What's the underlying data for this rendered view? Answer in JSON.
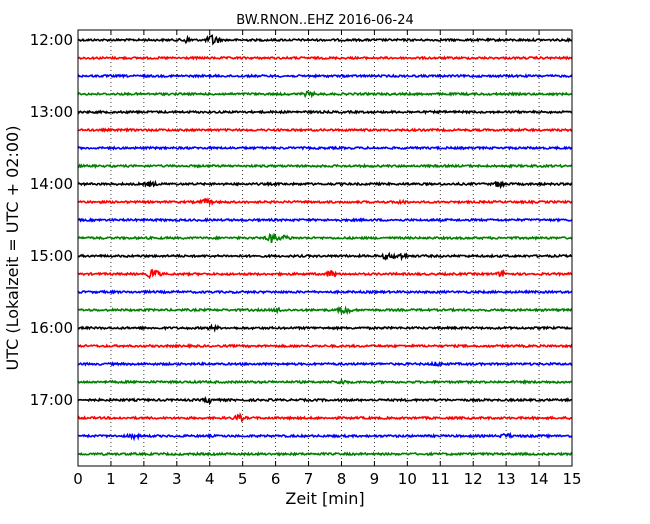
{
  "chart_data": {
    "type": "line",
    "title": "BW.RNON..EHZ 2016-06-24",
    "xlabel": "Zeit  [min]",
    "ylabel": "UTC (Lokalzeit = UTC + 02:00)",
    "xlim": [
      0,
      15
    ],
    "x_ticks": [
      0,
      1,
      2,
      3,
      4,
      5,
      6,
      7,
      8,
      9,
      10,
      11,
      12,
      13,
      14,
      15
    ],
    "x_tick_labels": [
      "0",
      "1",
      "2",
      "3",
      "4",
      "5",
      "6",
      "7",
      "8",
      "9",
      "10",
      "11",
      "12",
      "13",
      "14",
      "15"
    ],
    "y_tick_labels": [
      "12:00",
      "13:00",
      "14:00",
      "15:00",
      "16:00",
      "17:00"
    ],
    "grid": "vertical dotted",
    "trace_colors": [
      "#000000",
      "#ff0000",
      "#0000ff",
      "#008000"
    ],
    "traces": [
      {
        "start": "12:00",
        "events": [
          [
            3.3,
            0.6
          ],
          [
            4.1,
            1.4
          ]
        ]
      },
      {
        "start": "12:15",
        "events": []
      },
      {
        "start": "12:30",
        "events": []
      },
      {
        "start": "12:45",
        "events": [
          [
            7.0,
            0.5
          ]
        ]
      },
      {
        "start": "13:00",
        "events": []
      },
      {
        "start": "13:15",
        "events": []
      },
      {
        "start": "13:30",
        "events": []
      },
      {
        "start": "13:45",
        "events": []
      },
      {
        "start": "14:00",
        "events": [
          [
            2.2,
            0.5
          ],
          [
            12.8,
            0.7
          ]
        ]
      },
      {
        "start": "14:15",
        "events": [
          [
            3.9,
            0.6
          ],
          [
            9.8,
            0.3
          ]
        ]
      },
      {
        "start": "14:30",
        "events": []
      },
      {
        "start": "14:45",
        "events": [
          [
            5.9,
            1.1
          ],
          [
            6.3,
            0.5
          ]
        ]
      },
      {
        "start": "15:00",
        "events": [
          [
            9.4,
            0.7
          ],
          [
            9.8,
            0.6
          ]
        ]
      },
      {
        "start": "15:15",
        "events": [
          [
            2.3,
            1.3
          ],
          [
            7.7,
            0.8
          ],
          [
            12.9,
            0.6
          ]
        ]
      },
      {
        "start": "15:30",
        "events": []
      },
      {
        "start": "15:45",
        "events": [
          [
            8.1,
            1.0
          ],
          [
            6.1,
            0.4
          ]
        ]
      },
      {
        "start": "16:00",
        "events": [
          [
            4.1,
            0.4
          ]
        ]
      },
      {
        "start": "16:15",
        "events": []
      },
      {
        "start": "16:30",
        "events": [
          [
            10.9,
            0.4
          ]
        ]
      },
      {
        "start": "16:45",
        "events": [
          [
            8.0,
            0.4
          ]
        ]
      },
      {
        "start": "17:00",
        "events": [
          [
            4.0,
            0.6
          ]
        ]
      },
      {
        "start": "17:15",
        "events": [
          [
            4.9,
            0.7
          ]
        ]
      },
      {
        "start": "17:30",
        "events": [
          [
            1.7,
            0.4
          ],
          [
            13.0,
            0.5
          ]
        ]
      },
      {
        "start": "17:45",
        "events": []
      }
    ]
  }
}
